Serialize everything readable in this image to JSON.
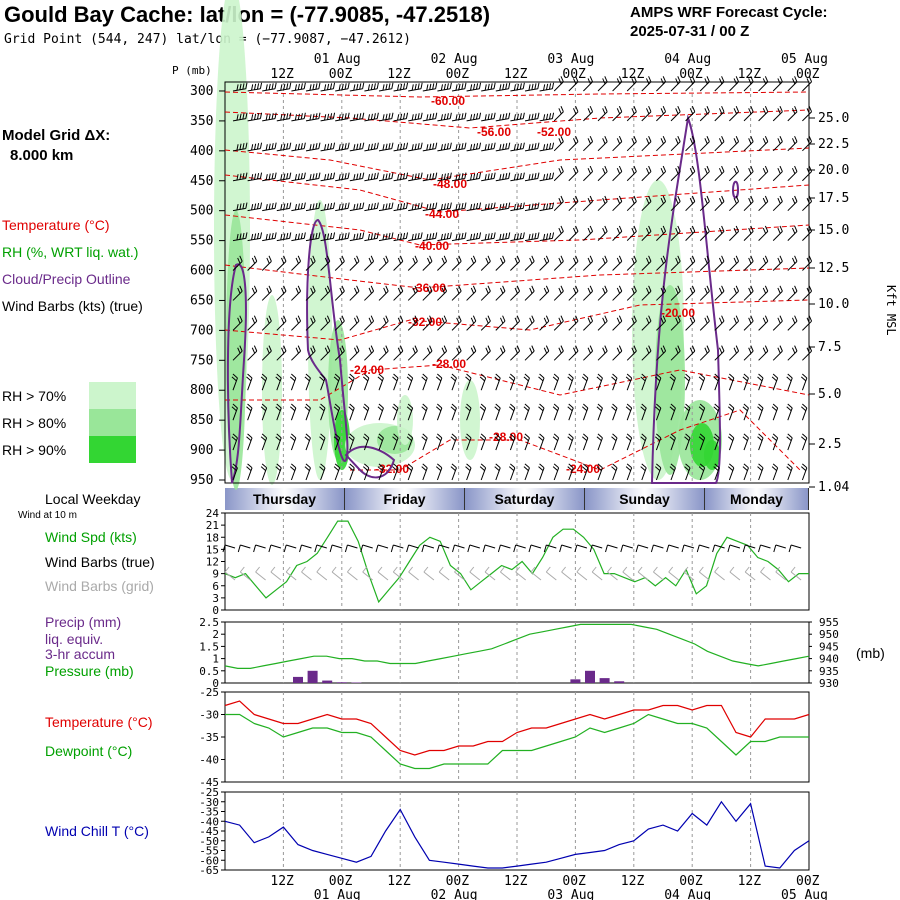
{
  "header": {
    "title": "Gould Bay Cache:  lat/lon = (-77.9085, -47.2518)",
    "subtitle": "Grid Point (544, 247) lat/lon = (−77.9087, −47.2612)",
    "cycle_line1": "AMPS WRF Forecast Cycle:",
    "cycle_line2": "2025-07-31 / 00  Z"
  },
  "sidebar": {
    "model_grid_line1": "Model Grid ΔX:",
    "model_grid_line2": "8.000 km",
    "temperature": "Temperature (°C)",
    "rh": "RH (%, WRT liq. wat.)",
    "cloud": "Cloud/Precip Outline",
    "barbs": "Wind Barbs (kts) (true)",
    "rh70": "RH > 70%",
    "rh80": "RH > 80%",
    "rh90": "RH > 90%",
    "local_weekday": "Local Weekday",
    "wind_at_10m": "Wind at 10 m",
    "wind_spd": "Wind Spd (kts)",
    "barbs_true": "Wind Barbs (true)",
    "barbs_grid": "Wind Barbs (grid)",
    "precip1": "Precip (mm)",
    "precip2": "liq. equiv.",
    "precip3": "3-hr accum",
    "pressure": "Pressure (mb)",
    "pressure_unit": "(mb)",
    "temp2": "Temperature (°C)",
    "dewpoint": "Dewpoint (°C)",
    "windchill": "Wind Chill T (°C)",
    "p_axis_label": "P (mb)",
    "kft_label": "Kft MSL"
  },
  "colors": {
    "temperature": "#e00000",
    "rh": "#00c000",
    "cloud": "#6a2a8a",
    "barbs_grid": "#aaaaaa",
    "windchill": "#0000b0",
    "weekday_band": "#8a96c8"
  },
  "time_axis": {
    "hour_labels": [
      "12Z",
      "00Z",
      "12Z",
      "00Z",
      "12Z",
      "00Z",
      "12Z",
      "00Z",
      "12Z",
      "00Z"
    ],
    "date_labels": [
      "01 Aug",
      "02 Aug",
      "03 Aug",
      "04 Aug",
      "05 Aug"
    ],
    "weekdays": [
      "Thursday",
      "Friday",
      "Saturday",
      "Sunday",
      "Monday"
    ]
  },
  "chart_data": [
    {
      "type": "heatmap",
      "panel": "cross_section",
      "y_label": "P (mb)",
      "pressure_levels": [
        300,
        350,
        400,
        450,
        500,
        550,
        600,
        650,
        700,
        750,
        800,
        850,
        900,
        950
      ],
      "height_ticks_kft": [
        "25.0",
        "22.5",
        "20.0",
        "17.5",
        "15.0",
        "12.5",
        "10.0",
        "7.5",
        "5.0",
        "2.5",
        "1.04"
      ],
      "temperature_contour_labels": [
        "-60.00",
        "-56.00",
        "-52.00",
        "-48.00",
        "-44.00",
        "-40.00",
        "-36.00",
        "-32.00",
        "-28.00",
        "-24.00",
        "-28.00",
        "-32.00",
        "-24.00",
        "-20.00"
      ]
    },
    {
      "type": "line",
      "panel": "wind_speed",
      "series": [
        {
          "name": "Wind Spd (kts)",
          "values": [
            9,
            8,
            9,
            6,
            3,
            5,
            7,
            11,
            12,
            14,
            18,
            22,
            22,
            17,
            9,
            2,
            5,
            8,
            12,
            16,
            18,
            17,
            11,
            9,
            5,
            7,
            9,
            11,
            10,
            12,
            9,
            13,
            18,
            20,
            20,
            18,
            15,
            9,
            9,
            8,
            7,
            8,
            6,
            8,
            6,
            10,
            4,
            6,
            14,
            18,
            17,
            16,
            13,
            12,
            10,
            7,
            9,
            9
          ]
        }
      ],
      "ylim": [
        0,
        24
      ],
      "y_ticks": [
        "0",
        "3",
        "6",
        "9",
        "12",
        "15",
        "18",
        "21",
        "24"
      ]
    },
    {
      "type": "line",
      "panel": "precip_pressure",
      "precip_mm": [
        {
          "x": 15,
          "v": 0.25
        },
        {
          "x": 18,
          "v": 0.5
        },
        {
          "x": 21,
          "v": 0.1
        },
        {
          "x": 24,
          "v": 0.03
        },
        {
          "x": 27,
          "v": 0.02
        },
        {
          "x": 72,
          "v": 0.15
        },
        {
          "x": 75,
          "v": 0.5
        },
        {
          "x": 78,
          "v": 0.2
        },
        {
          "x": 81,
          "v": 0.07
        }
      ],
      "precip_ylim": [
        0,
        2.5
      ],
      "precip_ticks": [
        "0",
        "0.5",
        "1",
        "1.5",
        "2",
        "2.5"
      ],
      "series": [
        {
          "name": "Pressure (mb)",
          "values": [
            937,
            936,
            936,
            937,
            938,
            939,
            940,
            941,
            941,
            940,
            940,
            939,
            939,
            938,
            938,
            938,
            939,
            940,
            941,
            942,
            943,
            944,
            946,
            948,
            950,
            951,
            952,
            953,
            954,
            954,
            954,
            954,
            954,
            953,
            952,
            950,
            948,
            946,
            943,
            941,
            939,
            938,
            937,
            938,
            939,
            940,
            941
          ]
        }
      ],
      "pressure_ylim": [
        930,
        955
      ],
      "pressure_ticks": [
        "930",
        "935",
        "940",
        "945",
        "950",
        "955"
      ]
    },
    {
      "type": "line",
      "panel": "temperature_dewpoint",
      "series": [
        {
          "name": "Temperature (°C)",
          "values": [
            -28,
            -27,
            -30,
            -31,
            -32,
            -32,
            -31,
            -30,
            -31,
            -31,
            -32,
            -35,
            -38,
            -39,
            -38,
            -38,
            -37,
            -37,
            -36,
            -36,
            -34,
            -33,
            -33,
            -32,
            -31,
            -30,
            -31,
            -30,
            -29,
            -29,
            -28,
            -28,
            -29,
            -28,
            -28,
            -34,
            -35,
            -31,
            -31,
            -31,
            -30
          ]
        },
        {
          "name": "Dewpoint (°C)",
          "values": [
            -30,
            -30,
            -32,
            -33,
            -35,
            -34,
            -33,
            -33,
            -34,
            -34,
            -35,
            -38,
            -41,
            -42,
            -42,
            -41,
            -41,
            -41,
            -41,
            -38,
            -38,
            -38,
            -37,
            -36,
            -35,
            -33,
            -34,
            -33,
            -32,
            -30,
            -31,
            -32,
            -32,
            -33,
            -36,
            -39,
            -36,
            -36,
            -35,
            -35,
            -35
          ]
        }
      ],
      "ylim": [
        -45,
        -25
      ],
      "y_ticks": [
        "-25",
        "-30",
        "-35",
        "-40",
        "-45"
      ]
    },
    {
      "type": "line",
      "panel": "wind_chill",
      "series": [
        {
          "name": "Wind Chill T (°C)",
          "values": [
            -40,
            -42,
            -51,
            -48,
            -43,
            -52,
            -55,
            -57,
            -59,
            -61,
            -58,
            -45,
            -34,
            -48,
            -60,
            -61,
            -62,
            -63,
            -64,
            -64,
            -63,
            -62,
            -61,
            -59,
            -57,
            -56,
            -55,
            -52,
            -50,
            -44,
            -42,
            -45,
            -36,
            -42,
            -30,
            -40,
            -31,
            -63,
            -64,
            -55,
            -50
          ]
        }
      ],
      "ylim": [
        -65,
        -25
      ],
      "y_ticks": [
        "-25",
        "-30",
        "-35",
        "-40",
        "-45",
        "-50",
        "-55",
        "-60",
        "-65"
      ]
    }
  ]
}
